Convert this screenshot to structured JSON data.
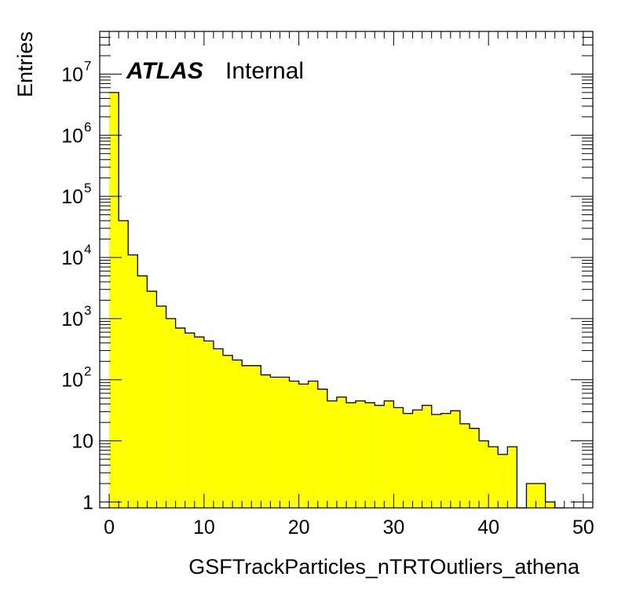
{
  "chart_data": {
    "type": "histogram",
    "title": "",
    "xlabel": "GSFTrackParticles_nTRTOutliers_athena",
    "ylabel": "Entries",
    "xlim": [
      -1,
      51
    ],
    "ylim": [
      0.8,
      50000000
    ],
    "yscale": "log",
    "grid": false,
    "legend": "none",
    "fill_color": "#ffff00",
    "line_color": "#000000",
    "bin_width": 1,
    "bin_low_edges": [
      0,
      1,
      2,
      3,
      4,
      5,
      6,
      7,
      8,
      9,
      10,
      11,
      12,
      13,
      14,
      15,
      16,
      17,
      18,
      19,
      20,
      21,
      22,
      23,
      24,
      25,
      26,
      27,
      28,
      29,
      30,
      31,
      32,
      33,
      34,
      35,
      36,
      37,
      38,
      39,
      40,
      41,
      42,
      43,
      44,
      45,
      46,
      47,
      48,
      49
    ],
    "values": [
      5000000,
      40000,
      11000,
      5000,
      2800,
      1600,
      1000,
      700,
      580,
      500,
      430,
      320,
      250,
      210,
      170,
      170,
      120,
      110,
      110,
      95,
      85,
      95,
      70,
      45,
      52,
      42,
      45,
      42,
      38,
      45,
      35,
      28,
      32,
      38,
      27,
      28,
      31,
      19,
      16,
      10,
      8,
      6,
      8,
      0,
      2,
      2,
      1,
      0,
      0,
      0
    ],
    "x_ticks": [
      "0",
      "10",
      "20",
      "30",
      "40",
      "50"
    ],
    "y_ticks": [
      {
        "base": "1",
        "exp": ""
      },
      {
        "base": "10",
        "exp": ""
      },
      {
        "base": "10",
        "exp": "2"
      },
      {
        "base": "10",
        "exp": "3"
      },
      {
        "base": "10",
        "exp": "4"
      },
      {
        "base": "10",
        "exp": "5"
      },
      {
        "base": "10",
        "exp": "6"
      },
      {
        "base": "10",
        "exp": "7"
      }
    ],
    "annotations": {
      "experiment": "ATLAS",
      "status": "Internal"
    }
  }
}
